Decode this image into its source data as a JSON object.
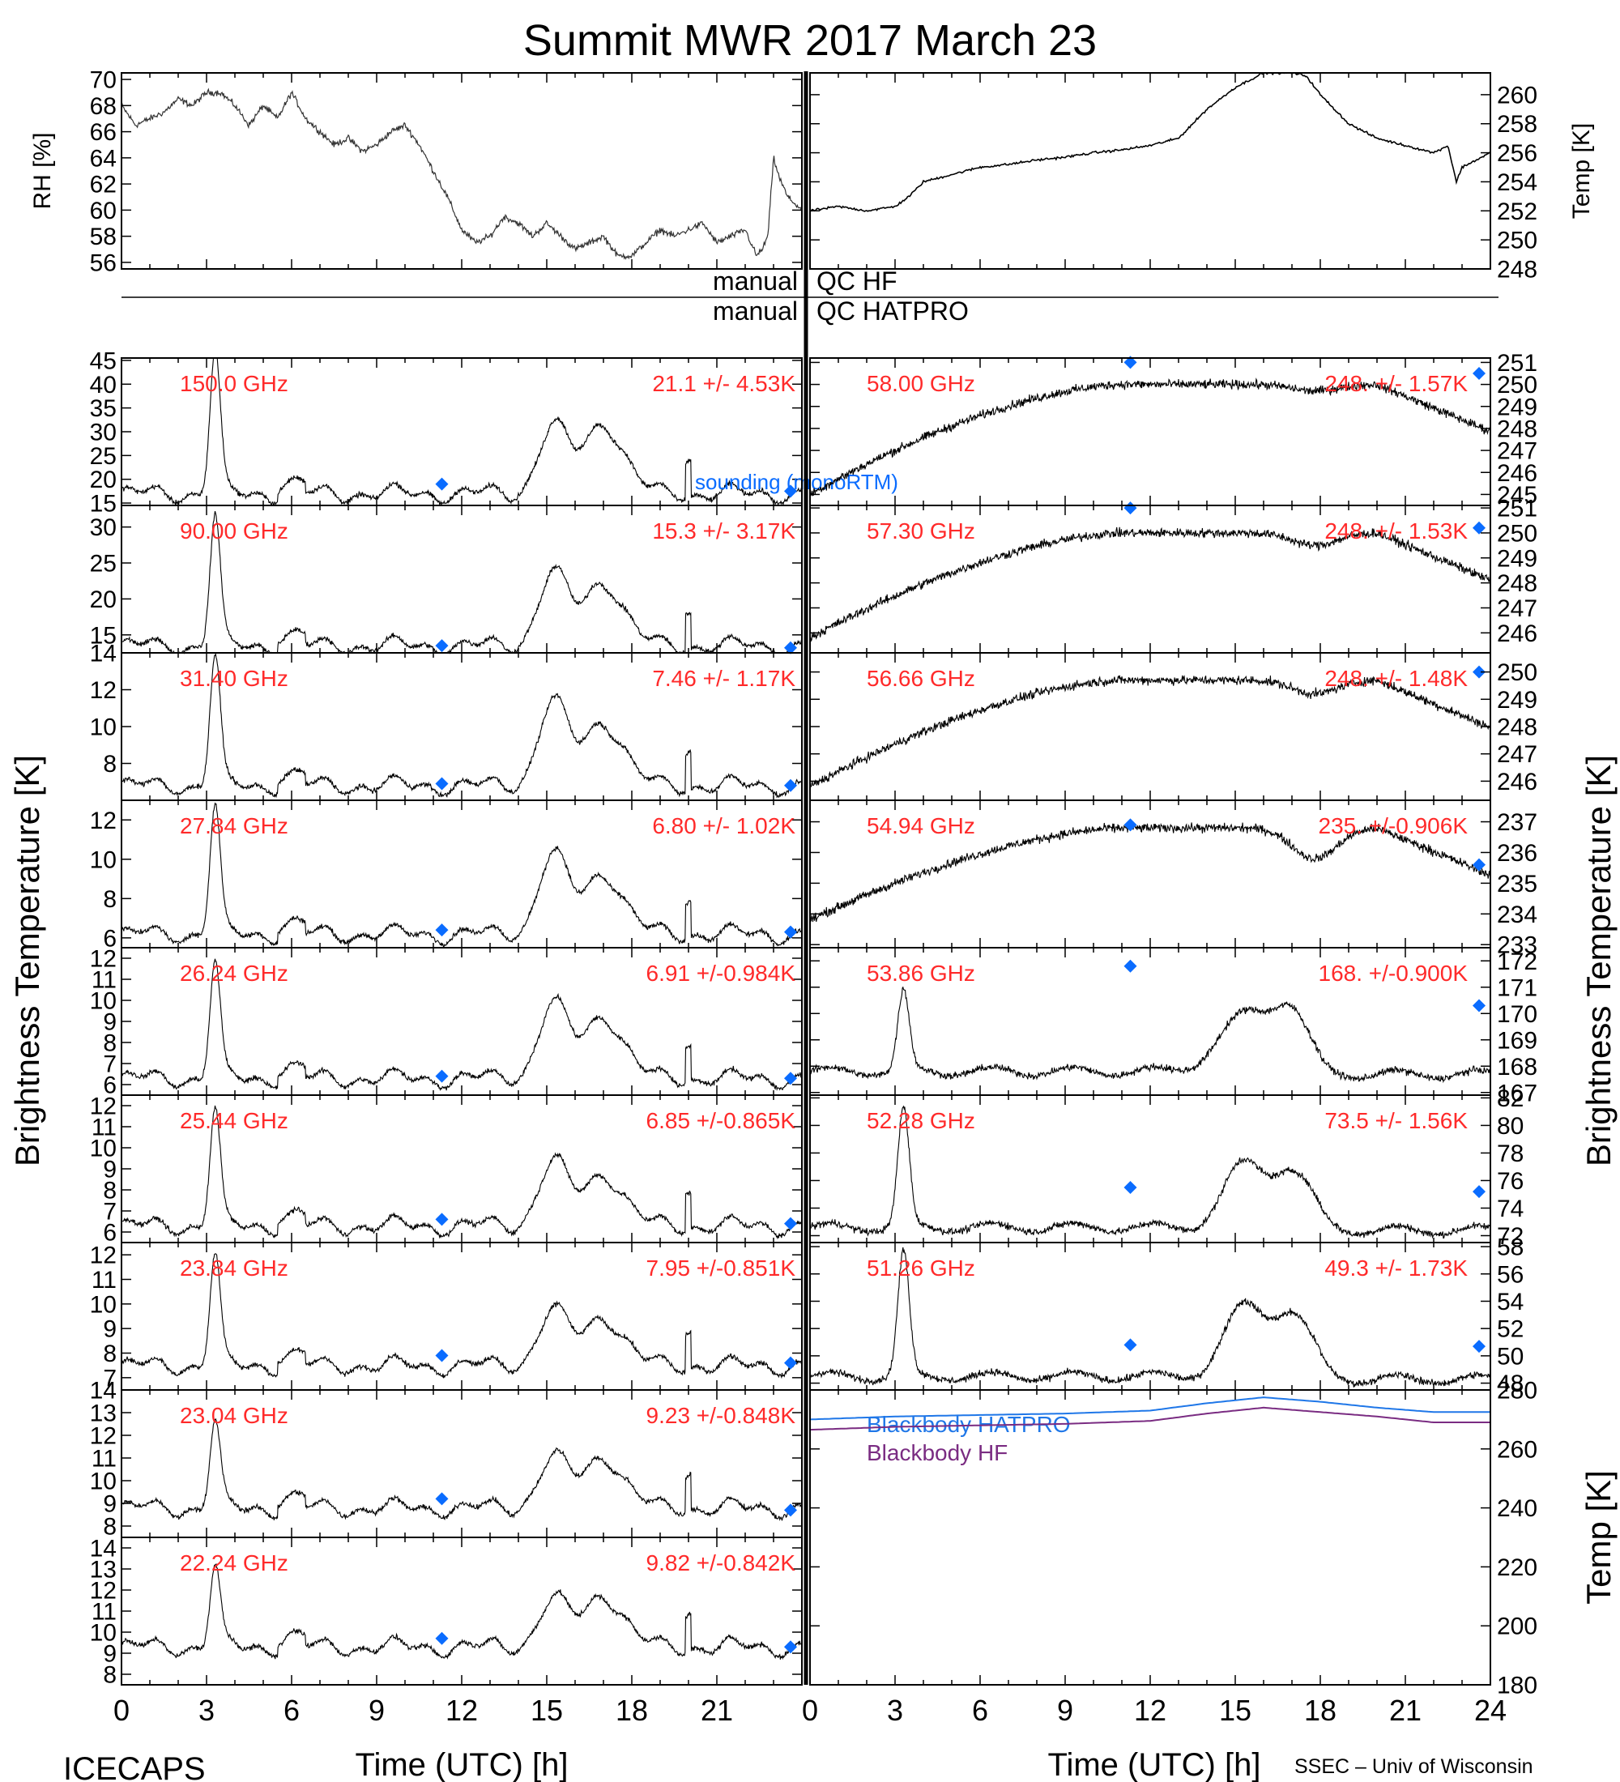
{
  "title": "Summit MWR 2017 March 23",
  "footer": {
    "left": "ICECAPS",
    "right": "SSEC – Univ of Wisconsin"
  },
  "xaxis": {
    "label": "Time (UTC) [h]",
    "range": [
      0,
      24
    ],
    "ticks": [
      0,
      3,
      6,
      9,
      12,
      15,
      18,
      21,
      24
    ]
  },
  "left_ylabel": "Brightness Temperature [K]",
  "right_ylabel": "Brightness Temperature [K]",
  "qc": {
    "left_hf": "manual",
    "right_hf": "QC HF",
    "left_hatpro": "manual",
    "right_hatpro": "QC HATPRO"
  },
  "chart_data": [
    {
      "type": "line",
      "name": "rh",
      "ylabel": "RH [%]",
      "ylim": [
        55.5,
        70.5
      ],
      "ticks": [
        56,
        58,
        60,
        62,
        64,
        66,
        68,
        70
      ],
      "x": [
        0,
        0.5,
        1,
        1.5,
        2,
        2.5,
        3,
        3.5,
        4,
        4.5,
        5,
        5.5,
        6,
        6.5,
        7,
        7.5,
        8,
        8.5,
        9,
        9.5,
        10,
        10.5,
        11,
        11.5,
        12,
        12.5,
        13,
        13.5,
        14,
        14.5,
        15,
        15.5,
        16,
        16.5,
        17,
        17.5,
        18,
        18.5,
        19,
        19.5,
        20,
        20.5,
        21,
        21.5,
        22,
        22.2,
        22.4,
        22.6,
        22.8,
        23,
        23.2,
        23.5,
        24
      ],
      "y": [
        68,
        66.5,
        67,
        67.5,
        68.5,
        68,
        69,
        69,
        68,
        66.5,
        68,
        67,
        69,
        67,
        66,
        65,
        65.5,
        64.5,
        65,
        66,
        66.5,
        65,
        63,
        61,
        58.5,
        57.5,
        58,
        59.5,
        59,
        58,
        59,
        58,
        57,
        57.5,
        58,
        56.5,
        56.5,
        57.5,
        58.5,
        58,
        58.5,
        59,
        57.5,
        58,
        58.5,
        57.5,
        56.5,
        57,
        58,
        64,
        62.5,
        61,
        60
      ]
    },
    {
      "type": "line",
      "name": "temp",
      "ylabel": "Temp [K]",
      "ylim": [
        248,
        261.5
      ],
      "ticks": [
        248,
        250,
        252,
        254,
        256,
        258,
        260
      ],
      "x": [
        0,
        1,
        2,
        3,
        3.5,
        4,
        5,
        6,
        7,
        8,
        9,
        10,
        11,
        12,
        13,
        13.5,
        14,
        15,
        16,
        17,
        17.5,
        18,
        19,
        20,
        21,
        22,
        22.5,
        22.8,
        23,
        23.5,
        24
      ],
      "y": [
        252,
        252.3,
        252,
        252.3,
        253,
        254,
        254.5,
        255,
        255.2,
        255.5,
        255.7,
        256,
        256.2,
        256.5,
        257,
        258,
        259,
        260.5,
        261.5,
        261.5,
        261.3,
        260,
        258,
        257,
        256.5,
        256,
        256.5,
        254,
        255,
        255.5,
        256
      ]
    }
  ],
  "bt_panels": [
    {
      "freq": "150.0 GHz",
      "stats": "21.1 +/-  4.53K",
      "ylim": [
        14.5,
        45.5
      ],
      "ticks": [
        15,
        20,
        25,
        30,
        35,
        40,
        45
      ],
      "base": 17,
      "bumps": [
        [
          3.3,
          0.18,
          30
        ],
        [
          15.2,
          0.5,
          14
        ],
        [
          17,
          0.7,
          15
        ]
      ],
      "sondes": [
        [
          11.3,
          19
        ],
        [
          23.6,
          17.5
        ]
      ],
      "annot": "sounding (monoRTM)"
    },
    {
      "freq": "90.00 GHz",
      "stats": "15.3 +/-  3.17K",
      "ylim": [
        12.5,
        33
      ],
      "ticks": [
        15,
        20,
        25,
        30
      ],
      "base": 13.5,
      "bumps": [
        [
          3.3,
          0.18,
          18
        ],
        [
          15.2,
          0.5,
          10
        ],
        [
          17,
          0.7,
          9
        ]
      ],
      "sondes": [
        [
          11.3,
          13.5
        ],
        [
          23.6,
          13.2
        ]
      ]
    },
    {
      "freq": "31.40 GHz",
      "stats": "7.46 +/- 1.17K",
      "ylim": [
        6,
        14
      ],
      "ticks": [
        8,
        10,
        12,
        14
      ],
      "base": 6.8,
      "bumps": [
        [
          3.3,
          0.18,
          7
        ],
        [
          15.2,
          0.5,
          4.5
        ],
        [
          17,
          0.7,
          3.5
        ]
      ],
      "sondes": [
        [
          11.3,
          6.9
        ],
        [
          23.6,
          6.8
        ]
      ]
    },
    {
      "freq": "27.84 GHz",
      "stats": "6.80 +/- 1.02K",
      "ylim": [
        5.5,
        13
      ],
      "ticks": [
        6,
        8,
        10,
        12
      ],
      "base": 6.2,
      "bumps": [
        [
          3.3,
          0.18,
          6.5
        ],
        [
          15.2,
          0.5,
          4
        ],
        [
          17,
          0.7,
          3.1
        ]
      ],
      "sondes": [
        [
          11.3,
          6.4
        ],
        [
          23.6,
          6.3
        ]
      ]
    },
    {
      "freq": "26.24 GHz",
      "stats": "6.91 +/-0.984K",
      "ylim": [
        5.5,
        12.5
      ],
      "ticks": [
        6,
        7,
        8,
        9,
        10,
        11,
        12
      ],
      "base": 6.3,
      "bumps": [
        [
          3.3,
          0.18,
          5.5
        ],
        [
          15.2,
          0.5,
          3.5
        ],
        [
          17,
          0.7,
          3
        ]
      ],
      "sondes": [
        [
          11.3,
          6.4
        ],
        [
          23.6,
          6.3
        ]
      ]
    },
    {
      "freq": "25.44 GHz",
      "stats": "6.85 +/-0.865K",
      "ylim": [
        5.5,
        12.5
      ],
      "ticks": [
        6,
        7,
        8,
        9,
        10,
        11,
        12
      ],
      "base": 6.3,
      "bumps": [
        [
          3.3,
          0.18,
          5.5
        ],
        [
          15.2,
          0.5,
          3
        ],
        [
          17,
          0.7,
          2.5
        ]
      ],
      "sondes": [
        [
          11.3,
          6.6
        ],
        [
          23.6,
          6.4
        ]
      ]
    },
    {
      "freq": "23.84 GHz",
      "stats": "7.95 +/-0.851K",
      "ylim": [
        6.5,
        12.5
      ],
      "ticks": [
        7,
        8,
        9,
        10,
        11,
        12
      ],
      "base": 7.5,
      "bumps": [
        [
          3.3,
          0.18,
          4.5
        ],
        [
          15.2,
          0.5,
          2.2
        ],
        [
          17,
          0.7,
          2
        ]
      ],
      "sondes": [
        [
          11.3,
          7.9
        ],
        [
          23.6,
          7.6
        ]
      ]
    },
    {
      "freq": "23.04 GHz",
      "stats": "9.23 +/-0.848K",
      "ylim": [
        7.5,
        14
      ],
      "ticks": [
        8,
        9,
        10,
        11,
        12,
        13,
        14
      ],
      "base": 8.8,
      "bumps": [
        [
          3.3,
          0.18,
          3.8
        ],
        [
          15.2,
          0.5,
          2.2
        ],
        [
          17,
          0.7,
          2.3
        ]
      ],
      "sondes": [
        [
          11.3,
          9.2
        ],
        [
          23.6,
          8.7
        ]
      ]
    },
    {
      "freq": "22.24 GHz",
      "stats": "9.82 +/-0.842K",
      "ylim": [
        7.5,
        14.5
      ],
      "ticks": [
        8,
        9,
        10,
        11,
        12,
        13,
        14
      ],
      "base": 9.3,
      "bumps": [
        [
          3.3,
          0.18,
          3.8
        ],
        [
          15.2,
          0.5,
          2.2
        ],
        [
          17,
          0.7,
          2.5
        ]
      ],
      "sondes": [
        [
          11.3,
          9.7
        ],
        [
          23.6,
          9.3
        ]
      ]
    }
  ],
  "v_panels": [
    {
      "freq": "58.00 GHz",
      "stats": "248. +/-  1.57K",
      "ylim": [
        244.5,
        251.2
      ],
      "ticks": [
        245,
        246,
        247,
        248,
        249,
        250,
        251
      ],
      "shape": "rise",
      "start": 245,
      "end": 250,
      "dip": 249.7,
      "sondes": [
        [
          11.3,
          251
        ],
        [
          23.6,
          250.5
        ]
      ]
    },
    {
      "freq": "57.30 GHz",
      "stats": "248. +/-  1.53K",
      "ylim": [
        245.2,
        251.1
      ],
      "ticks": [
        246,
        247,
        248,
        249,
        250,
        251
      ],
      "shape": "rise",
      "start": 245.8,
      "end": 250,
      "dip": 249.5,
      "sondes": [
        [
          11.3,
          251
        ],
        [
          23.6,
          250.2
        ]
      ]
    },
    {
      "freq": "56.66 GHz",
      "stats": "248. +/-  1.48K",
      "ylim": [
        245.3,
        250.7
      ],
      "ticks": [
        246,
        247,
        248,
        249,
        250
      ],
      "shape": "rise",
      "start": 245.8,
      "end": 249.7,
      "dip": 249.2,
      "sondes": [
        [
          23.6,
          250
        ]
      ]
    },
    {
      "freq": "54.94 GHz",
      "stats": "235. +/-0.906K",
      "ylim": [
        232.9,
        237.7
      ],
      "ticks": [
        233,
        234,
        235,
        236,
        237
      ],
      "shape": "rise",
      "start": 233.8,
      "end": 236.8,
      "dip": 235.8,
      "sondes": [
        [
          11.3,
          236.9
        ],
        [
          23.6,
          235.6
        ]
      ]
    },
    {
      "freq": "53.86 GHz",
      "stats": "168. +/-0.900K",
      "ylim": [
        166.9,
        172.5
      ],
      "ticks": [
        167,
        168,
        169,
        170,
        171,
        172
      ],
      "shape": "spike",
      "base": 167.8,
      "bumps": [
        [
          3.3,
          0.2,
          3
        ],
        [
          15.5,
          1.0,
          2.2
        ],
        [
          17,
          0.6,
          1.8
        ]
      ],
      "sondes": [
        [
          11.3,
          171.8
        ],
        [
          23.6,
          170.3
        ]
      ]
    },
    {
      "freq": "52.28 GHz",
      "stats": "73.5 +/-  1.56K",
      "ylim": [
        71.5,
        82.2
      ],
      "ticks": [
        72,
        74,
        76,
        78,
        80,
        82
      ],
      "shape": "spike",
      "base": 72.6,
      "bumps": [
        [
          3.3,
          0.2,
          8.5
        ],
        [
          15.3,
          0.7,
          4.5
        ],
        [
          17,
          0.7,
          4
        ]
      ],
      "sondes": [
        [
          11.3,
          75.5
        ],
        [
          23.6,
          75.2
        ]
      ]
    },
    {
      "freq": "51.26 GHz",
      "stats": "49.3 +/-  1.73K",
      "ylim": [
        47.5,
        58.3
      ],
      "ticks": [
        48,
        50,
        52,
        54,
        56,
        58
      ],
      "shape": "spike",
      "base": 48.5,
      "bumps": [
        [
          3.3,
          0.2,
          9
        ],
        [
          15.3,
          0.7,
          5
        ],
        [
          17,
          0.7,
          4.5
        ]
      ],
      "sondes": [
        [
          11.3,
          50.8
        ],
        [
          23.6,
          50.7
        ]
      ]
    }
  ],
  "blackbody": {
    "ylabel": "Temp [K]",
    "ylim": [
      180,
      280
    ],
    "ticks": [
      180,
      200,
      220,
      240,
      260,
      280
    ],
    "series": [
      {
        "name": "Blackbody HATPRO",
        "color": "#1f77e8",
        "x": [
          0,
          3,
          6,
          9,
          12,
          14,
          16,
          18,
          20,
          22,
          24
        ],
        "y": [
          270,
          271,
          271.5,
          272,
          273,
          275.5,
          277.5,
          276,
          274,
          272.5,
          272.5
        ]
      },
      {
        "name": "Blackbody HF",
        "color": "#7a2c82",
        "x": [
          0,
          3,
          6,
          9,
          12,
          14,
          16,
          18,
          20,
          22,
          24
        ],
        "y": [
          266.5,
          267.5,
          268,
          268.5,
          269.5,
          272,
          274,
          272.5,
          271,
          269,
          269
        ]
      }
    ]
  },
  "colors": {
    "text_red": "#ff2a2a",
    "sonde": "#0a6cff",
    "trace": "#000000"
  }
}
